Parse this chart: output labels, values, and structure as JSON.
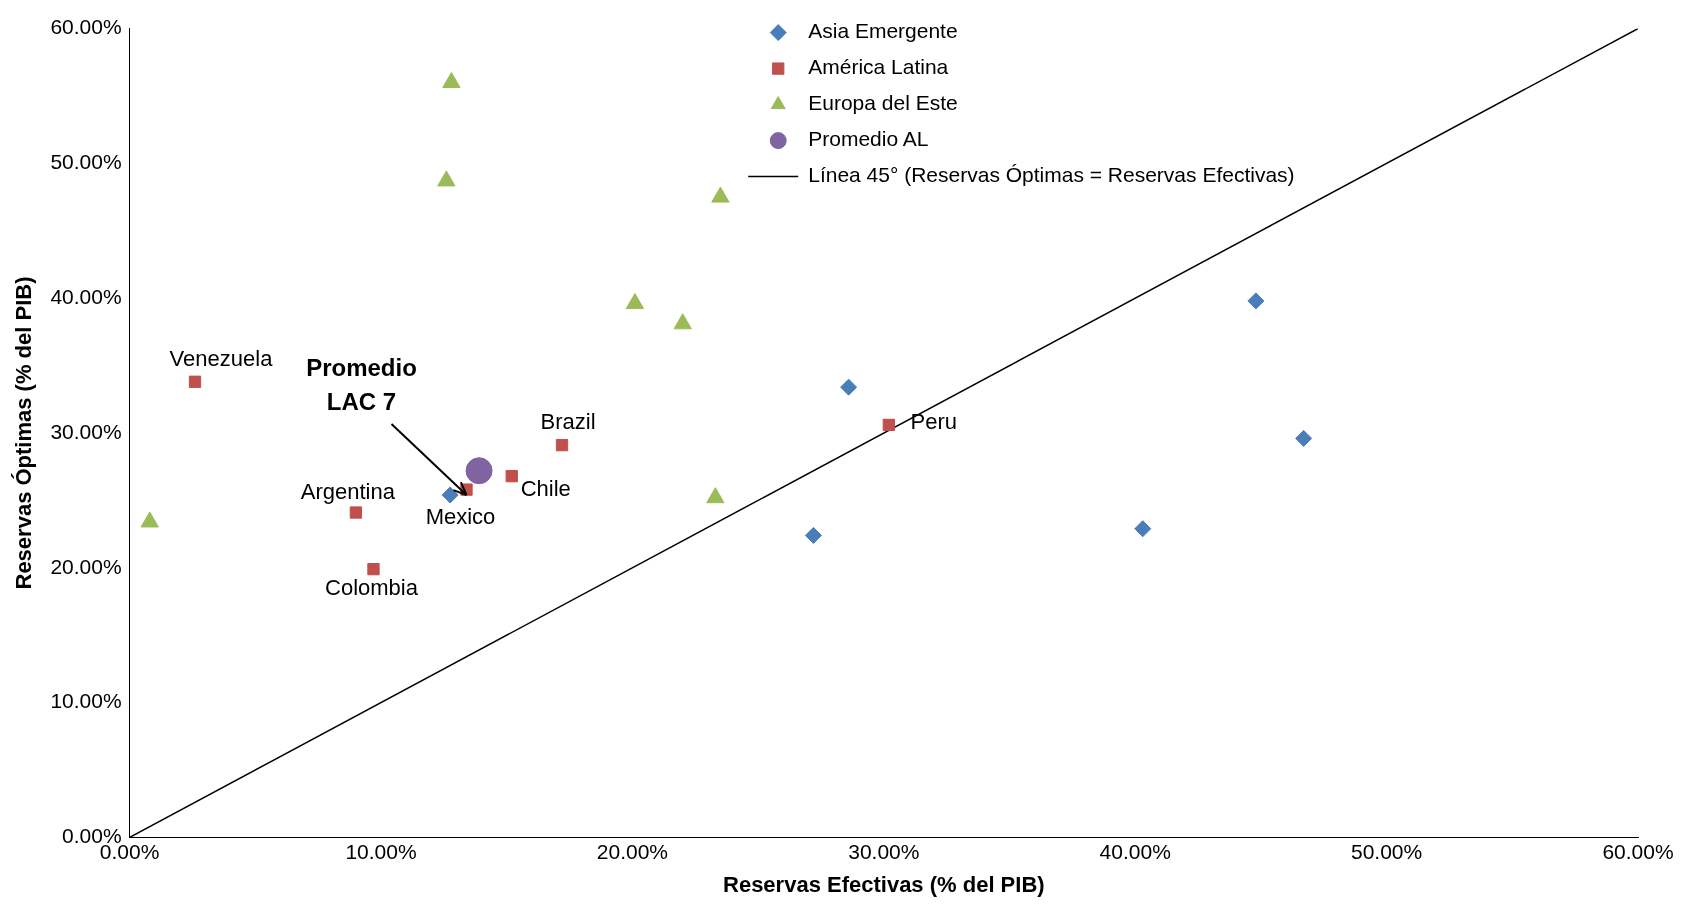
{
  "chart_data": {
    "type": "scatter",
    "xlabel": "Reservas Efectivas (% del PIB)",
    "ylabel": "Reservas Óptimas (% del PIB)",
    "xlim": [
      0,
      60
    ],
    "ylim": [
      0,
      60
    ],
    "xticks": [
      {
        "value": 0,
        "label": "0.00%"
      },
      {
        "value": 10,
        "label": "10.00%"
      },
      {
        "value": 20,
        "label": "20.00%"
      },
      {
        "value": 30,
        "label": "30.00%"
      },
      {
        "value": 40,
        "label": "40.00%"
      },
      {
        "value": 50,
        "label": "50.00%"
      },
      {
        "value": 60,
        "label": "60.00%"
      }
    ],
    "yticks": [
      {
        "value": 0,
        "label": "0.00%"
      },
      {
        "value": 10,
        "label": "10.00%"
      },
      {
        "value": 20,
        "label": "20.00%"
      },
      {
        "value": 30,
        "label": "30.00%"
      },
      {
        "value": 40,
        "label": "40.00%"
      },
      {
        "value": 50,
        "label": "50.00%"
      },
      {
        "value": 60,
        "label": "60.00%"
      }
    ],
    "grid": false,
    "legend": "top right",
    "series": [
      {
        "name": "Asia Emergente",
        "color": "#4a7ebb",
        "marker": "diamond",
        "x": [
          12.75,
          27.2,
          28.6,
          40.3,
          44.8,
          46.7
        ],
        "values": [
          25.4,
          22.4,
          33.4,
          22.9,
          39.8,
          29.6
        ]
      },
      {
        "name": "América Latina",
        "color": "#c0504d",
        "marker": "square",
        "x": [
          2.6,
          9.0,
          9.7,
          13.4,
          15.2,
          17.2,
          30.2
        ],
        "values": [
          33.8,
          24.1,
          19.9,
          25.8,
          26.8,
          29.1,
          30.6
        ]
      },
      {
        "name": "Europa del Este",
        "color": "#9bbb59",
        "marker": "triangle",
        "x": [
          0.8,
          12.6,
          12.8,
          20.1,
          22.0,
          23.3,
          23.5
        ],
        "values": [
          23.4,
          48.7,
          56.0,
          39.6,
          38.1,
          25.2,
          47.5
        ]
      },
      {
        "name": "Promedio AL",
        "color": "#8064a2",
        "marker": "circle",
        "x": [
          13.9
        ],
        "values": [
          27.2
        ]
      },
      {
        "name": "Línea 45° (Reservas Óptimas = Reservas Efectivas)",
        "type": "line",
        "color": "#000000",
        "marker": "none",
        "x": [
          0,
          60
        ],
        "values": [
          0,
          60
        ]
      }
    ],
    "annotations": [
      {
        "text": "Venezuela",
        "x": 2.6,
        "y": 33.8
      },
      {
        "text": "Argentina",
        "x": 9.0,
        "y": 24.1
      },
      {
        "text": "Colombia",
        "x": 9.7,
        "y": 19.9
      },
      {
        "text": "Mexico",
        "x": 13.4,
        "y": 25.8
      },
      {
        "text": "Chile",
        "x": 15.2,
        "y": 26.8
      },
      {
        "text": "Brazil",
        "x": 17.2,
        "y": 29.1
      },
      {
        "text": "Peru",
        "x": 30.2,
        "y": 30.6
      },
      {
        "text": "Promedio LAC 7",
        "x": 13.4,
        "y": 25.4
      }
    ]
  }
}
